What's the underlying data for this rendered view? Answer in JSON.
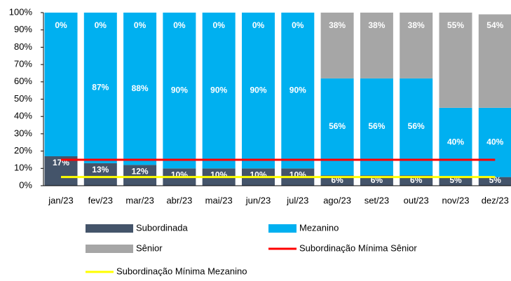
{
  "chart_data": {
    "type": "bar",
    "categories": [
      "jan/23",
      "fev/23",
      "mar/23",
      "abr/23",
      "mai/23",
      "jun/23",
      "jul/23",
      "ago/23",
      "set/23",
      "out/23",
      "nov/23",
      "dez/23"
    ],
    "series": [
      {
        "name": "Subordinada",
        "color": "#44546a",
        "values": [
          17,
          13,
          12,
          10,
          10,
          10,
          10,
          6,
          6,
          6,
          5,
          5
        ],
        "value_labels": [
          "17%",
          "13%",
          "12%",
          "10%",
          "10%",
          "10%",
          "10%",
          "6%",
          "6%",
          "6%",
          "5%",
          "5%"
        ]
      },
      {
        "name": "Mezanino",
        "color": "#00b0f0",
        "values": [
          83,
          87,
          88,
          90,
          90,
          90,
          90,
          56,
          56,
          56,
          40,
          40
        ],
        "value_labels": [
          null,
          "87%",
          "88%",
          "90%",
          "90%",
          "90%",
          "90%",
          "56%",
          "56%",
          "56%",
          "40%",
          "40%"
        ]
      },
      {
        "name": "Sênior",
        "color": "#a6a6a6",
        "values": [
          0,
          0,
          0,
          0,
          0,
          0,
          0,
          38,
          38,
          38,
          55,
          54
        ],
        "value_labels": [
          "0%",
          "0%",
          "0%",
          "0%",
          "0%",
          "0%",
          "0%",
          "38%",
          "38%",
          "38%",
          "55%",
          "54%"
        ]
      }
    ],
    "lines": [
      {
        "name": "Subordinação Mínima Sênior",
        "color": "#ff0000",
        "values": [
          15,
          15,
          15,
          15,
          15,
          15,
          15,
          15,
          15,
          15,
          15,
          15
        ]
      },
      {
        "name": "Subordinação Mínima Mezanino",
        "color": "#ffff00",
        "values": [
          5,
          5,
          5,
          5,
          5,
          5,
          5,
          5,
          5,
          5,
          5,
          5
        ]
      }
    ],
    "stacked": true,
    "ylim": [
      0,
      100
    ],
    "yticks": [
      {
        "value": 0,
        "label": "0%"
      },
      {
        "value": 10,
        "label": "10%"
      },
      {
        "value": 20,
        "label": "20%"
      },
      {
        "value": 30,
        "label": "30%"
      },
      {
        "value": 40,
        "label": "40%"
      },
      {
        "value": 50,
        "label": "50%"
      },
      {
        "value": 60,
        "label": "60%"
      },
      {
        "value": 70,
        "label": "70%"
      },
      {
        "value": 80,
        "label": "80%"
      },
      {
        "value": 90,
        "label": "90%"
      },
      {
        "value": 100,
        "label": "100%"
      }
    ]
  }
}
